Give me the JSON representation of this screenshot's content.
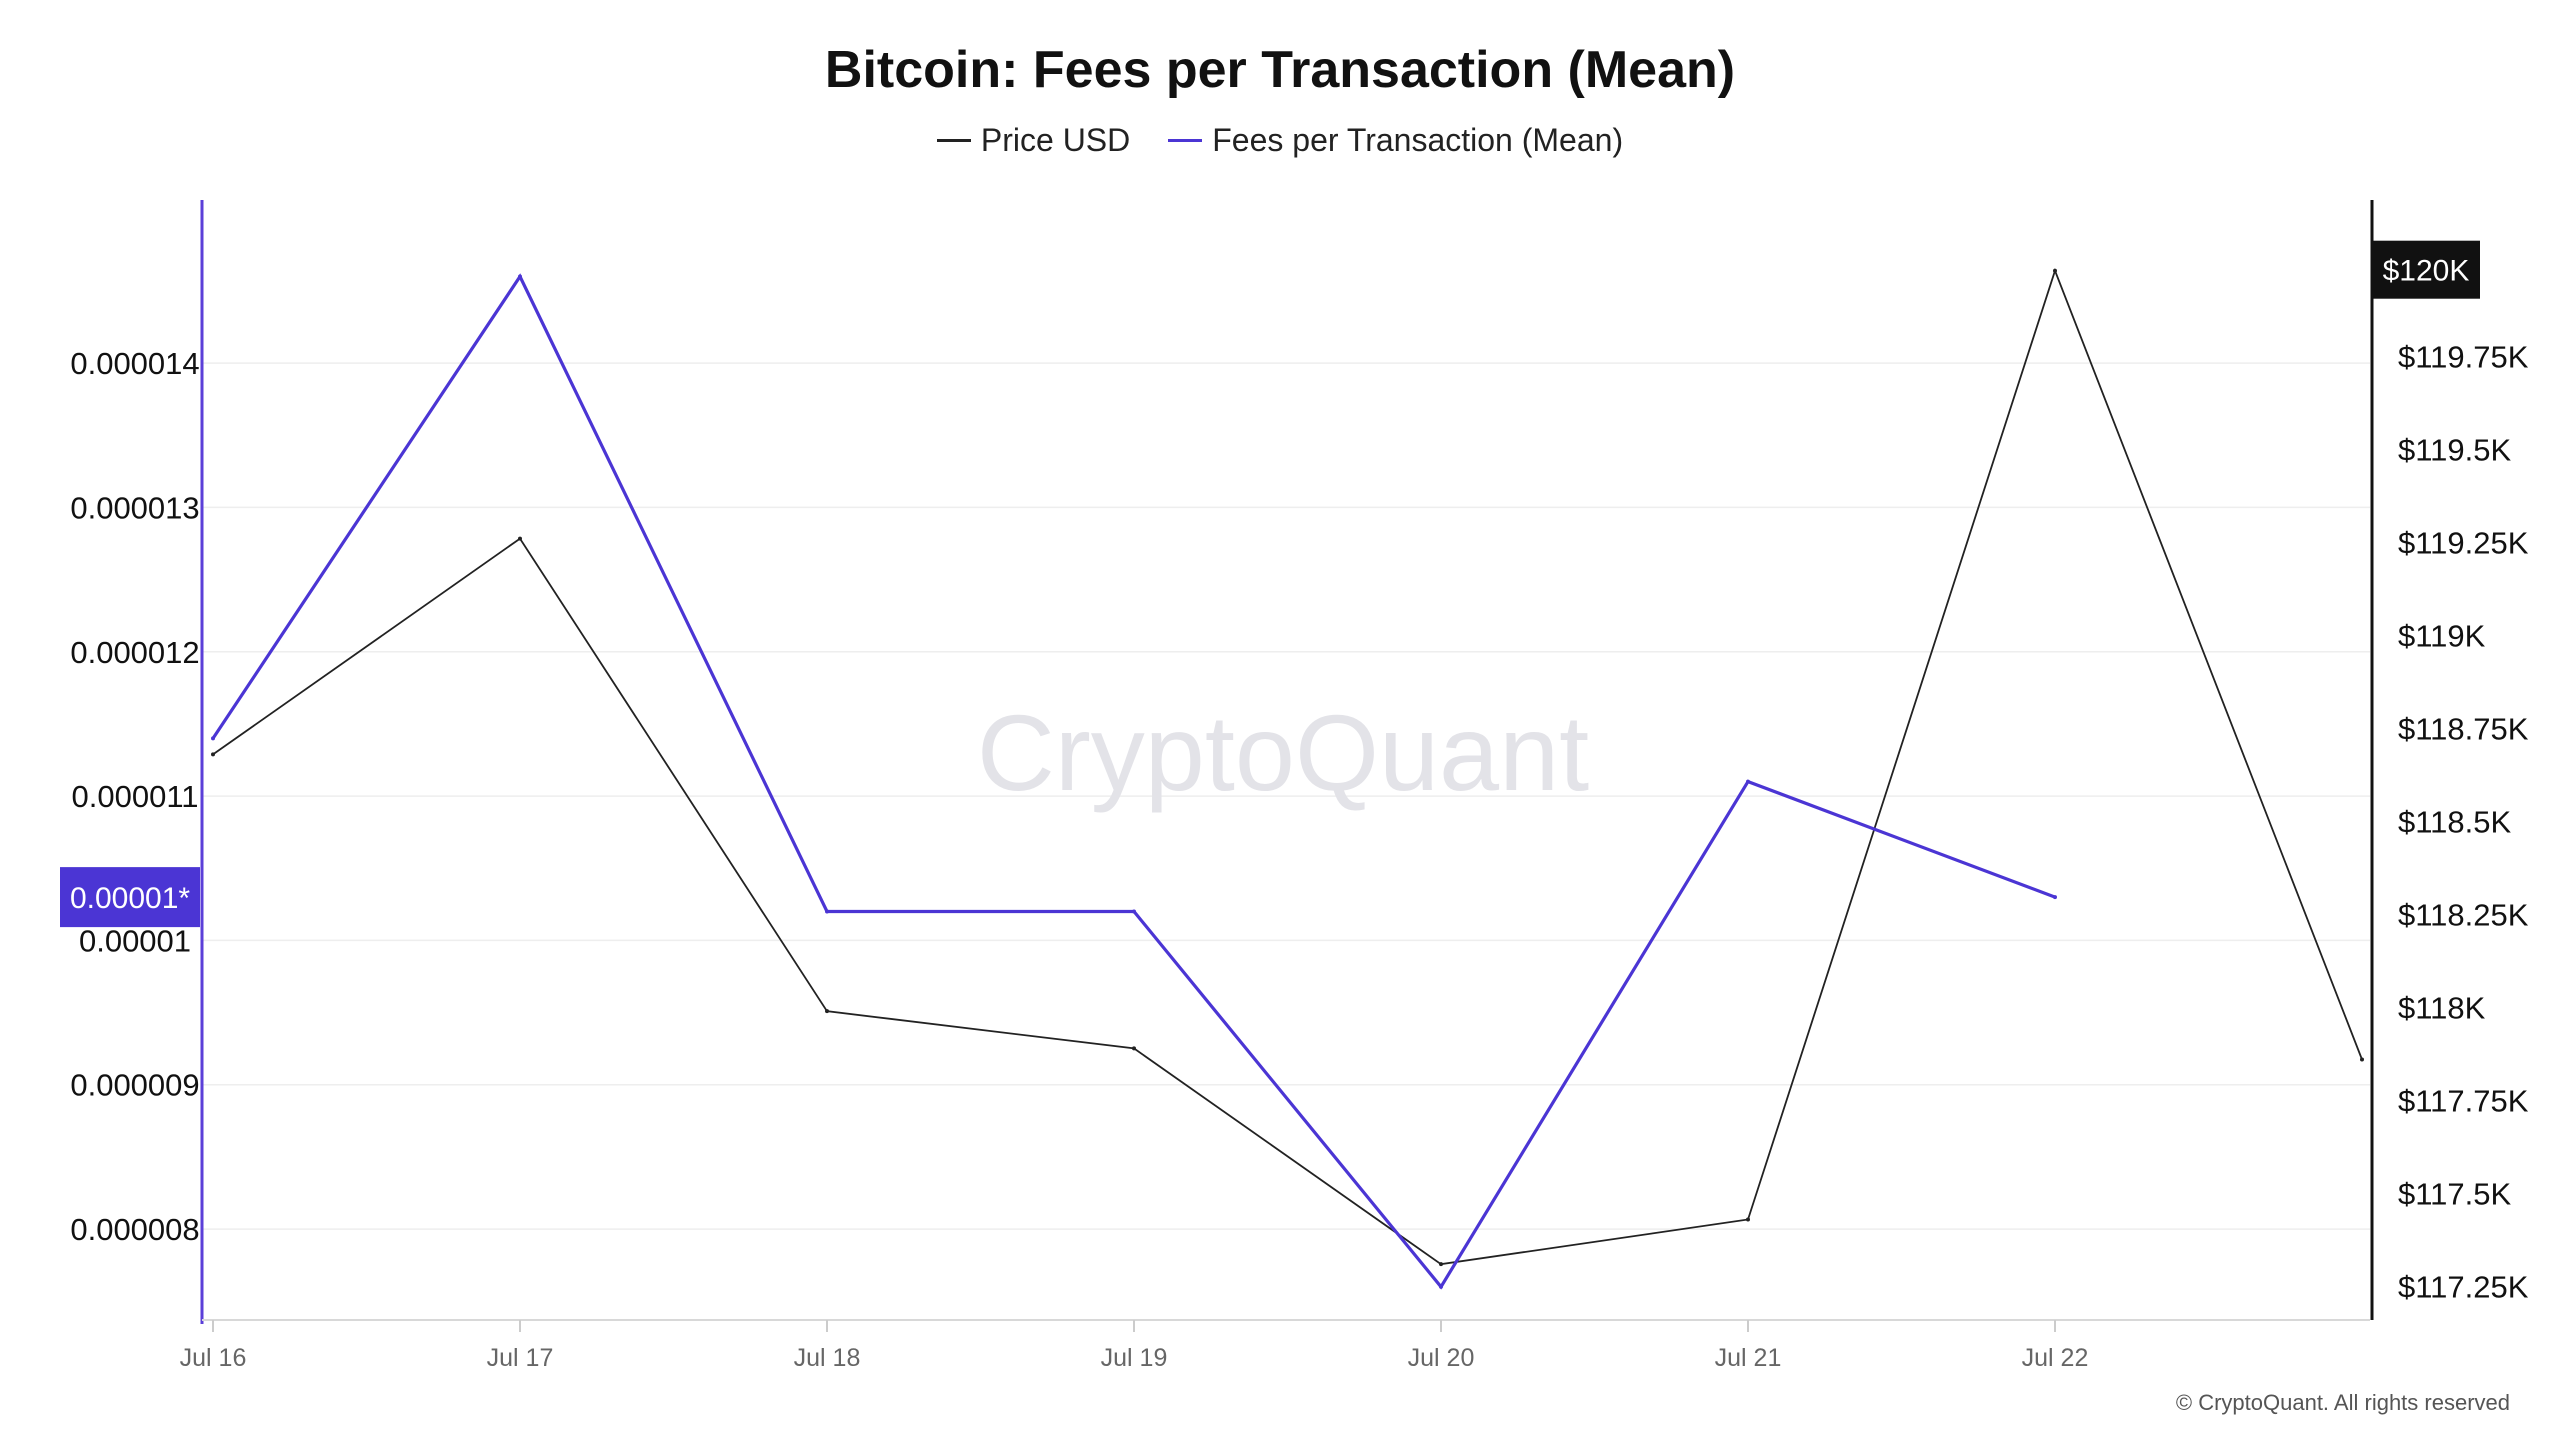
{
  "title": "Bitcoin: Fees per Transaction (Mean)",
  "legend": {
    "price": "Price USD",
    "fees": "Fees per Transaction (Mean)"
  },
  "watermark": "CryptoQuant",
  "footer": "© CryptoQuant. All rights reserved",
  "colors": {
    "price": "#222222",
    "fees": "#4b35d4",
    "grid": "#eeeeee",
    "watermark": "#e3e3e8",
    "left_axis": "#5b3fd8",
    "right_axis": "#111111"
  },
  "chart_data": {
    "type": "line",
    "categories": [
      "Jul 16",
      "Jul 17",
      "Jul 18",
      "Jul 19",
      "Jul 20",
      "Jul 21",
      "Jul 22",
      ""
    ],
    "left_axis": {
      "ticks": [
        8e-06,
        9e-06,
        1e-05,
        1.1e-05,
        1.2e-05,
        1.3e-05,
        1.4e-05
      ],
      "tick_labels": [
        "0.000008",
        "0.000009",
        "0.00001",
        "0.000011",
        "0.000012",
        "0.000013",
        "0.000014"
      ],
      "range": [
        7.37e-06,
        1.513e-05
      ],
      "current_value_label": "0.00001*"
    },
    "right_axis": {
      "ticks": [
        117250,
        117500,
        117750,
        118000,
        118250,
        118500,
        118750,
        119000,
        119250,
        119500,
        119750
      ],
      "tick_labels": [
        "$117.25K",
        "$117.5K",
        "$117.75K",
        "$118K",
        "$118.25K",
        "$118.5K",
        "$118.75K",
        "$119K",
        "$119.25K",
        "$119.5K",
        "$119.75K"
      ],
      "range": [
        117160,
        120170
      ],
      "current_value_label": "$120K"
    },
    "series": [
      {
        "name": "Price USD",
        "axis": "right",
        "values": [
          118680,
          119260,
          117990,
          117890,
          117310,
          117430,
          119980,
          117860
        ]
      },
      {
        "name": "Fees per Transaction (Mean)",
        "axis": "left",
        "values": [
          1.14e-05,
          1.46e-05,
          1.02e-05,
          1.02e-05,
          7.6e-06,
          1.11e-05,
          1.03e-05,
          null
        ]
      }
    ]
  }
}
